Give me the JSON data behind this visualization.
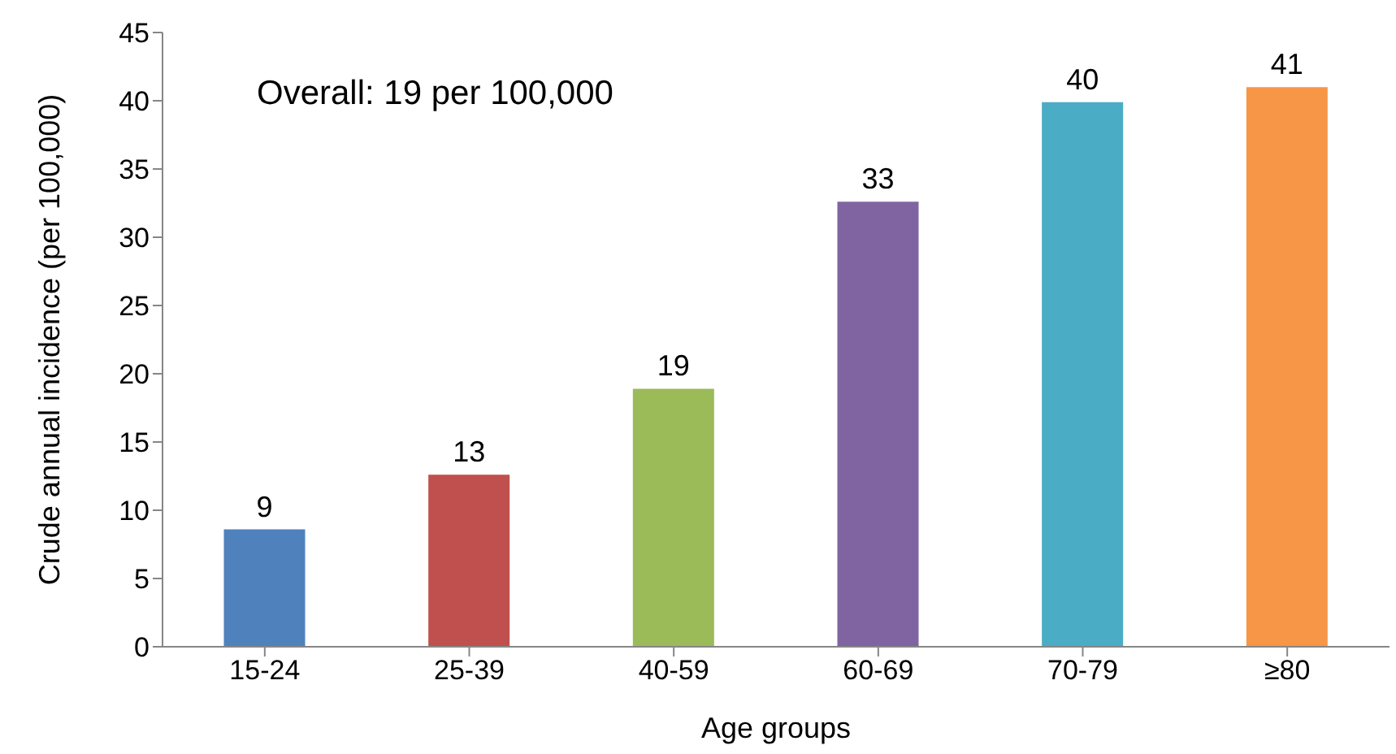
{
  "chart_data": {
    "type": "bar",
    "xlabel": "Age groups",
    "ylabel": "Crude annual incidence (per 100,000)",
    "categories": [
      "15-24",
      "25-39",
      "40-59",
      "60-69",
      "70-79",
      "≥80"
    ],
    "values": [
      8.6,
      12.6,
      18.9,
      32.6,
      39.9,
      41.0
    ],
    "colors": [
      "#4f81bd",
      "#c0504d",
      "#9bbb59",
      "#8064a2",
      "#4bacc6",
      "#f79646"
    ],
    "value_labels": [
      "9",
      "13",
      "19",
      "33",
      "40",
      "41"
    ],
    "ylim": [
      0,
      45
    ],
    "yticks": [
      0,
      5,
      10,
      15,
      20,
      25,
      30,
      35,
      40,
      45
    ],
    "annotations": [
      "Overall: 19 per 100,000"
    ],
    "grid": false
  }
}
